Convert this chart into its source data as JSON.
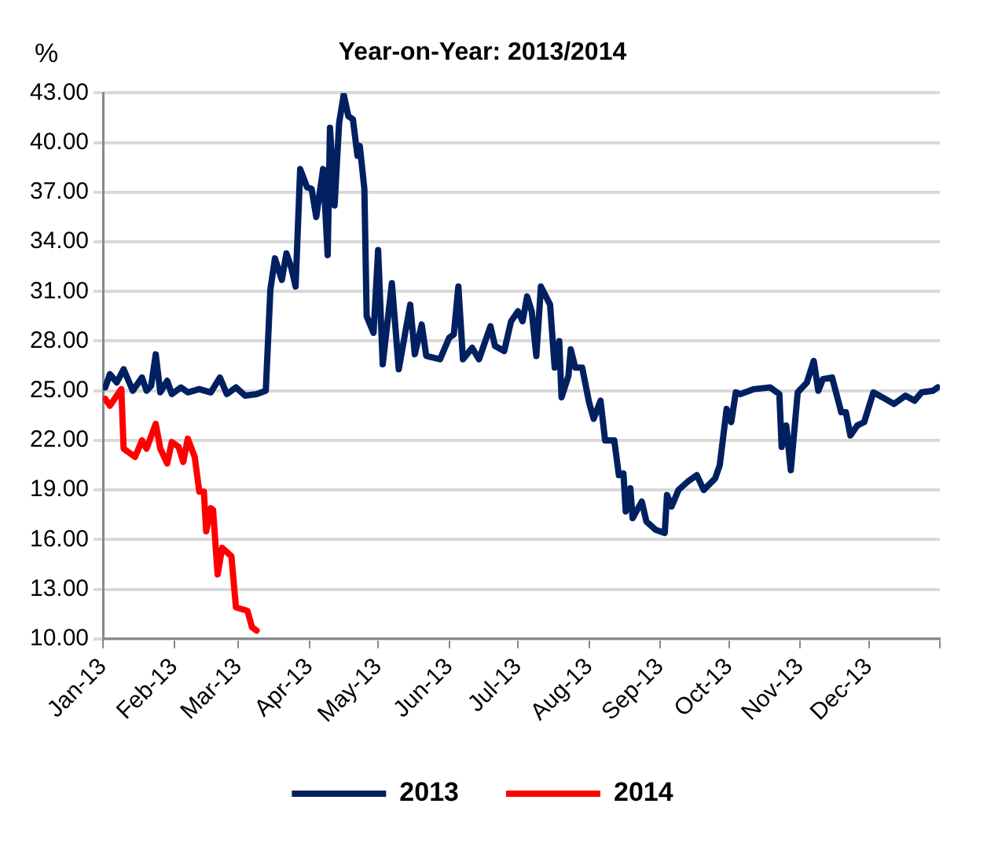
{
  "chart_data": {
    "type": "line",
    "title": "Year-on-Year: 2013/2014",
    "ylabel": "%",
    "xlim": [
      "2013-01-01",
      "2014-01-01"
    ],
    "xticks": [
      {
        "value": "2013-01-01",
        "label": "Jan-13"
      },
      {
        "value": "2013-02-01",
        "label": "Feb-13"
      },
      {
        "value": "2013-03-01",
        "label": "Mar-13"
      },
      {
        "value": "2013-04-01",
        "label": "Apr-13"
      },
      {
        "value": "2013-05-01",
        "label": "May-13"
      },
      {
        "value": "2013-06-01",
        "label": "Jun-13"
      },
      {
        "value": "2013-07-01",
        "label": "Jul-13"
      },
      {
        "value": "2013-08-01",
        "label": "Aug-13"
      },
      {
        "value": "2013-09-01",
        "label": "Sep-13"
      },
      {
        "value": "2013-10-01",
        "label": "Oct-13"
      },
      {
        "value": "2013-11-01",
        "label": "Nov-13"
      },
      {
        "value": "2013-12-01",
        "label": "Dec-13"
      },
      {
        "value": "2014-01-01",
        "label": null
      }
    ],
    "ylim": [
      10,
      43
    ],
    "yticks": [
      {
        "value": 10,
        "label": "10.00"
      },
      {
        "value": 13,
        "label": "13.00"
      },
      {
        "value": 16,
        "label": "16.00"
      },
      {
        "value": 19,
        "label": "19.00"
      },
      {
        "value": 22,
        "label": "22.00"
      },
      {
        "value": 25,
        "label": "25.00"
      },
      {
        "value": 28,
        "label": "28.00"
      },
      {
        "value": 31,
        "label": "31.00"
      },
      {
        "value": 34,
        "label": "34.00"
      },
      {
        "value": 37,
        "label": "37.00"
      },
      {
        "value": 40,
        "label": "40.00"
      },
      {
        "value": 43,
        "label": "43.00"
      }
    ],
    "grid": "y",
    "legend": "bottom",
    "marker": "none",
    "line_style": "solid",
    "series": [
      {
        "name": "2013",
        "color": "#002060",
        "x": [
          "2013-01-02",
          "2013-01-04",
          "2013-01-07",
          "2013-01-10",
          "2013-01-14",
          "2013-01-18",
          "2013-01-20",
          "2013-01-22",
          "2013-01-24",
          "2013-01-26",
          "2013-01-29",
          "2013-01-31",
          "2013-02-04",
          "2013-02-07",
          "2013-02-12",
          "2013-02-17",
          "2013-02-21",
          "2013-02-24",
          "2013-02-28",
          "2013-03-04",
          "2013-03-09",
          "2013-03-13",
          "2013-03-15",
          "2013-03-17",
          "2013-03-20",
          "2013-03-22",
          "2013-03-24",
          "2013-03-26",
          "2013-03-28",
          "2013-03-31",
          "2013-04-02",
          "2013-04-04",
          "2013-04-07",
          "2013-04-09",
          "2013-04-10",
          "2013-04-12",
          "2013-04-14",
          "2013-04-16",
          "2013-04-18",
          "2013-04-20",
          "2013-04-22",
          "2013-04-23",
          "2013-04-25",
          "2013-04-26",
          "2013-04-29",
          "2013-05-01",
          "2013-05-03",
          "2013-05-07",
          "2013-05-10",
          "2013-05-15",
          "2013-05-17",
          "2013-05-20",
          "2013-05-22",
          "2013-05-28",
          "2013-06-01",
          "2013-06-03",
          "2013-06-05",
          "2013-06-07",
          "2013-06-11",
          "2013-06-14",
          "2013-06-19",
          "2013-06-21",
          "2013-06-25",
          "2013-06-28",
          "2013-07-01",
          "2013-07-03",
          "2013-07-05",
          "2013-07-07",
          "2013-07-09",
          "2013-07-11",
          "2013-07-15",
          "2013-07-17",
          "2013-07-19",
          "2013-07-20",
          "2013-07-23",
          "2013-07-24",
          "2013-07-26",
          "2013-07-29",
          "2013-08-01",
          "2013-08-03",
          "2013-08-06",
          "2013-08-08",
          "2013-08-12",
          "2013-08-14",
          "2013-08-16",
          "2013-08-17",
          "2013-08-19",
          "2013-08-20",
          "2013-08-24",
          "2013-08-26",
          "2013-08-30",
          "2013-09-03",
          "2013-09-04",
          "2013-09-06",
          "2013-09-09",
          "2013-09-13",
          "2013-09-17",
          "2013-09-20",
          "2013-09-25",
          "2013-09-27",
          "2013-09-30",
          "2013-10-02",
          "2013-10-04",
          "2013-10-06",
          "2013-10-12",
          "2013-10-19",
          "2013-10-23",
          "2013-10-24",
          "2013-10-26",
          "2013-10-28",
          "2013-10-31",
          "2013-11-04",
          "2013-11-07",
          "2013-11-09",
          "2013-11-11",
          "2013-11-15",
          "2013-11-19",
          "2013-11-21",
          "2013-11-23",
          "2013-11-26",
          "2013-11-29",
          "2013-12-03",
          "2013-12-07",
          "2013-12-12",
          "2013-12-17",
          "2013-12-21",
          "2013-12-24",
          "2013-12-29",
          "2013-12-31"
        ],
        "values": [
          25.2,
          26.0,
          25.5,
          26.3,
          25.0,
          25.8,
          25.0,
          25.3,
          27.2,
          24.9,
          25.6,
          24.8,
          25.2,
          24.9,
          25.1,
          24.9,
          25.8,
          24.8,
          25.2,
          24.7,
          24.8,
          25.0,
          31.1,
          33.0,
          31.7,
          33.3,
          32.5,
          31.3,
          38.4,
          37.3,
          37.2,
          35.5,
          38.4,
          33.2,
          40.9,
          36.2,
          41.2,
          42.9,
          41.6,
          41.4,
          39.2,
          39.8,
          37.2,
          29.5,
          28.5,
          33.5,
          26.6,
          31.5,
          26.3,
          30.2,
          27.2,
          29.0,
          27.1,
          26.9,
          28.2,
          28.4,
          31.3,
          26.9,
          27.6,
          26.9,
          28.9,
          27.7,
          27.4,
          29.2,
          29.8,
          29.2,
          30.7,
          29.8,
          27.1,
          31.3,
          30.2,
          26.4,
          28.0,
          24.6,
          25.9,
          27.5,
          26.4,
          26.4,
          24.3,
          23.3,
          24.4,
          22.0,
          22.0,
          19.9,
          20.0,
          17.7,
          19.1,
          17.3,
          18.3,
          17.1,
          16.6,
          16.4,
          18.7,
          18.0,
          19.0,
          19.5,
          19.9,
          19.0,
          19.7,
          20.5,
          23.9,
          23.1,
          24.9,
          24.8,
          25.1,
          25.2,
          24.8,
          21.6,
          22.9,
          20.2,
          24.9,
          25.5,
          26.8,
          25.0,
          25.7,
          25.8,
          23.7,
          23.7,
          22.3,
          22.9,
          23.1,
          24.9,
          24.6,
          24.2,
          24.7,
          24.4,
          24.9,
          25.0,
          25.2
        ]
      },
      {
        "name": "2014",
        "color": "#ff0000",
        "x": [
          "2013-01-02",
          "2013-01-04",
          "2013-01-07",
          "2013-01-09",
          "2013-01-10",
          "2013-01-15",
          "2013-01-18",
          "2013-01-20",
          "2013-01-24",
          "2013-01-26",
          "2013-01-29",
          "2013-01-31",
          "2013-02-03",
          "2013-02-05",
          "2013-02-07",
          "2013-02-10",
          "2013-02-12",
          "2013-02-14",
          "2013-02-15",
          "2013-02-17",
          "2013-02-18",
          "2013-02-20",
          "2013-02-22",
          "2013-02-26",
          "2013-02-28",
          "2013-03-05",
          "2013-03-07",
          "2013-03-09"
        ],
        "values": [
          24.5,
          24.1,
          24.7,
          25.1,
          21.5,
          21.0,
          22.0,
          21.5,
          23.0,
          21.5,
          20.6,
          21.9,
          21.6,
          20.7,
          22.1,
          21.0,
          18.9,
          18.9,
          16.5,
          17.9,
          17.8,
          13.9,
          15.5,
          15.0,
          11.9,
          11.7,
          10.7,
          10.5
        ]
      }
    ]
  }
}
